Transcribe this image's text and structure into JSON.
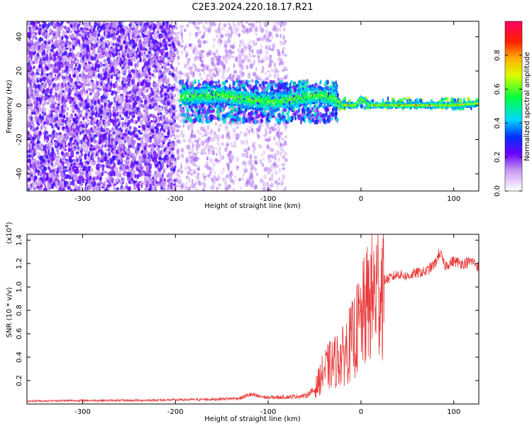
{
  "title": "C2E3.2024.220.18.17.R21",
  "colors": {
    "snr_line": "#e83a3a",
    "axis": "#000000",
    "background": "#ffffff"
  },
  "chart_data": [
    {
      "type": "heatmap",
      "name": "spectrogram",
      "xlabel": "Height of straight line (km)",
      "ylabel": "Frequency (Hz)",
      "xlim": [
        -360,
        127
      ],
      "ylim": [
        -50,
        49
      ],
      "x_ticks": [
        -300,
        -200,
        -100,
        0,
        100
      ],
      "x_tick_labels": [
        "-300",
        "-200",
        "-100",
        "0",
        "100"
      ],
      "y_ticks": [
        -40,
        -20,
        0,
        20,
        40
      ],
      "y_tick_labels": [
        "-40",
        "-20",
        "0",
        "20",
        "40"
      ],
      "colorbar": {
        "label": "Normalized spectral amplitude",
        "range": [
          0,
          1
        ],
        "ticks": [
          0.0,
          0.2,
          0.4,
          0.6,
          0.8
        ],
        "tick_labels": [
          "0.0",
          "0.2",
          "0.4",
          "0.6",
          "0.8"
        ],
        "colormap": "rainbow-white"
      },
      "regions": [
        {
          "x": [
            -360,
            -200
          ],
          "freq_spread": [
            -50,
            49
          ],
          "amplitude": 0.2
        },
        {
          "x": [
            -200,
            -80
          ],
          "freq_spread": [
            -50,
            49
          ],
          "amplitude": 0.08
        },
        {
          "x": [
            -195,
            -25
          ],
          "freq_spread": [
            -10,
            14
          ],
          "amplitude": 0.3
        },
        {
          "x": [
            -25,
            127
          ],
          "freq_spread": [
            -2,
            4
          ],
          "amplitude": 0.5
        }
      ],
      "carrier_trace": [
        {
          "x": -195,
          "f": 5
        },
        {
          "x": -150,
          "f": 6
        },
        {
          "x": -120,
          "f": 3
        },
        {
          "x": -90,
          "f": 2
        },
        {
          "x": -70,
          "f": 4
        },
        {
          "x": -50,
          "f": 6
        },
        {
          "x": -35,
          "f": 5
        },
        {
          "x": -25,
          "f": 3
        },
        {
          "x": -20,
          "f": 0
        },
        {
          "x": -5,
          "f": 0
        },
        {
          "x": 0,
          "f": 4
        },
        {
          "x": 10,
          "f": 0
        },
        {
          "x": 50,
          "f": 0
        },
        {
          "x": 100,
          "f": 0
        },
        {
          "x": 127,
          "f": 1
        }
      ]
    },
    {
      "type": "line",
      "name": "snr",
      "xlabel": "Height of straight line (km)",
      "ylabel": "SNR (10 * v/v)",
      "y_scale_label": "(x10",
      "y_scale_exponent": "4",
      "y_scale_close": ")",
      "xlim": [
        -360,
        127
      ],
      "ylim": [
        0,
        14500
      ],
      "x_ticks": [
        -300,
        -200,
        -100,
        0,
        100
      ],
      "x_tick_labels": [
        "-300",
        "-200",
        "-100",
        "0",
        "100"
      ],
      "y_ticks": [
        2000,
        4000,
        6000,
        8000,
        10000,
        12000,
        14000
      ],
      "y_tick_labels": [
        "0.2",
        "0.4",
        "0.6",
        "0.8",
        "1.0",
        "1.2",
        "1.4"
      ],
      "series": [
        {
          "x": [
            -360,
            -300,
            -250,
            -200,
            -160,
            -130,
            -120,
            -110,
            -100,
            -80,
            -60,
            -50,
            -45,
            -40,
            -35,
            -30,
            -25,
            -20,
            -15,
            -10,
            -5,
            0,
            5,
            10,
            15,
            20,
            25,
            30,
            40,
            50,
            60,
            70,
            80,
            85,
            90,
            100,
            110,
            120,
            127
          ],
          "values": [
            250,
            300,
            300,
            350,
            400,
            500,
            800,
            650,
            550,
            600,
            700,
            1200,
            2000,
            2800,
            3200,
            3500,
            3800,
            4000,
            4800,
            5300,
            6200,
            7000,
            8000,
            9000,
            9500,
            10000,
            10600,
            10700,
            11100,
            10900,
            11200,
            11300,
            12000,
            13000,
            11800,
            12200,
            12000,
            12200,
            11700
          ]
        }
      ]
    }
  ]
}
